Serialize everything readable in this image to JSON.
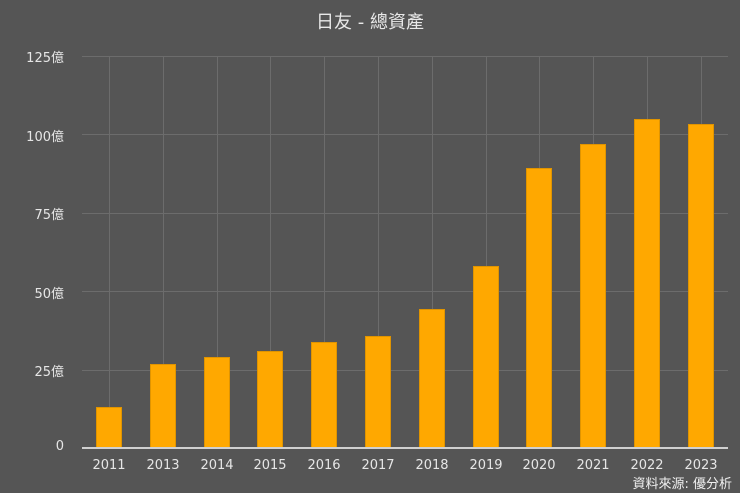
{
  "title": "日友 - 總資產",
  "source": "資料來源: 優分析",
  "y_ticks": [
    "125億",
    "100億",
    "75億",
    "50億",
    "25億",
    "0"
  ],
  "x_labels": [
    "2011",
    "2013",
    "2014",
    "2015",
    "2016",
    "2017",
    "2018",
    "2019",
    "2020",
    "2021",
    "2022",
    "2023"
  ],
  "colors": {
    "background": "#555555",
    "bar": "#ffa800",
    "grid": "#6c6c6c",
    "text": "#e6e6e6"
  },
  "chart_data": {
    "type": "bar",
    "title": "日友 - 總資產",
    "xlabel": "",
    "ylabel": "",
    "unit": "億",
    "categories": [
      "2011",
      "2013",
      "2014",
      "2015",
      "2016",
      "2017",
      "2018",
      "2019",
      "2020",
      "2021",
      "2022",
      "2023"
    ],
    "values": [
      13.1,
      26.8,
      29.0,
      30.9,
      33.8,
      35.7,
      44.3,
      58.0,
      89.3,
      96.9,
      104.9,
      103.3
    ],
    "ylim": [
      0,
      125
    ],
    "yticks": [
      0,
      25,
      50,
      75,
      100,
      125
    ],
    "grid": true,
    "legend": null,
    "annotation": "資料來源: 優分析"
  }
}
